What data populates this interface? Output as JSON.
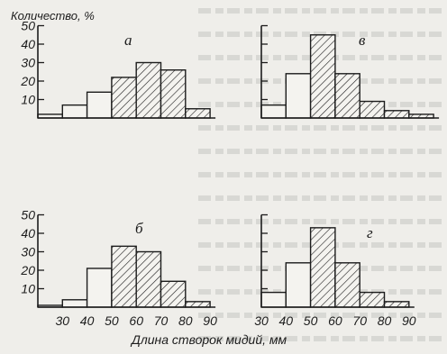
{
  "figure": {
    "y_axis_label": "Количество, %",
    "x_axis_label": "Длина створок мидий, мм"
  },
  "chart_data": [
    {
      "type": "bar",
      "panel_letter": "а",
      "x_unit": "мм",
      "bin_edges": [
        20,
        30,
        40,
        50,
        60,
        70,
        80,
        90
      ],
      "values": [
        2,
        7,
        14,
        22,
        30,
        26,
        5
      ],
      "hatched": [
        false,
        false,
        false,
        true,
        true,
        true,
        true
      ],
      "ylim": [
        0,
        50
      ],
      "yticks": [
        10,
        20,
        30,
        40,
        50
      ]
    },
    {
      "type": "bar",
      "panel_letter": "в",
      "x_unit": "мм",
      "bin_edges": [
        30,
        40,
        50,
        60,
        70,
        80,
        90,
        100
      ],
      "values": [
        7,
        24,
        45,
        24,
        9,
        4,
        2
      ],
      "hatched": [
        false,
        false,
        true,
        true,
        true,
        true,
        true
      ],
      "ylim": [
        0,
        50
      ],
      "yticks": [
        10,
        20,
        30,
        40,
        50
      ]
    },
    {
      "type": "bar",
      "panel_letter": "б",
      "x_unit": "мм",
      "bin_edges": [
        20,
        30,
        40,
        50,
        60,
        70,
        80,
        90
      ],
      "values": [
        1,
        4,
        21,
        33,
        30,
        14,
        3
      ],
      "hatched": [
        false,
        false,
        false,
        true,
        true,
        true,
        true
      ],
      "ylim": [
        0,
        50
      ],
      "yticks": [
        10,
        20,
        30,
        40,
        50
      ]
    },
    {
      "type": "bar",
      "panel_letter": "г",
      "x_unit": "мм",
      "bin_edges": [
        30,
        40,
        50,
        60,
        70,
        80,
        90
      ],
      "values": [
        8,
        24,
        43,
        24,
        8,
        3
      ],
      "hatched": [
        false,
        false,
        true,
        true,
        true,
        true
      ],
      "ylim": [
        0,
        50
      ],
      "yticks": [
        10,
        20,
        30,
        40,
        50
      ],
      "xticks": [
        30,
        40,
        50,
        60,
        70,
        80,
        90
      ]
    }
  ],
  "shared_xticks_left": [
    30,
    40,
    50,
    60,
    70,
    80,
    90
  ],
  "style": {
    "ink": "#1c1c1c",
    "paper": "#efeeea",
    "bar_fill_plain": "#f4f3ef"
  }
}
